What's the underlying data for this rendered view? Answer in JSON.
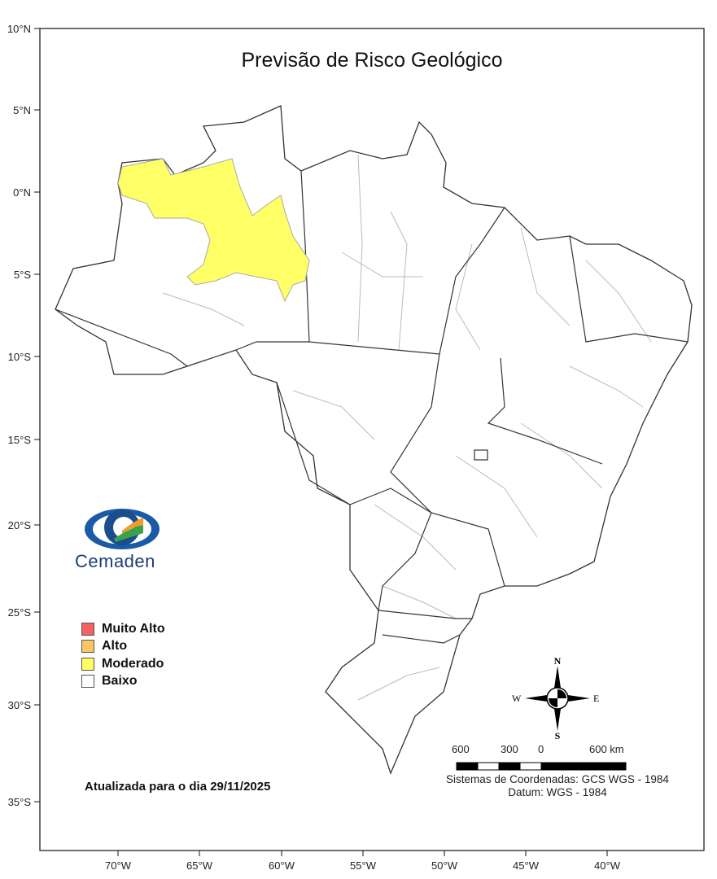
{
  "title": "Previsão de Risco Geológico",
  "axes": {
    "longitude_ticks": [
      "70°W",
      "65°W",
      "60°W",
      "55°W",
      "50°W",
      "45°W",
      "40°W"
    ],
    "latitude_ticks": [
      "10°N",
      "5°N",
      "0°N",
      "5°S",
      "10°S",
      "15°S",
      "20°S",
      "25°S",
      "30°S",
      "35°S"
    ]
  },
  "legend": {
    "items": [
      {
        "label": "Muito Alto",
        "color": "#f56161"
      },
      {
        "label": "Alto",
        "color": "#fcc563"
      },
      {
        "label": "Moderado",
        "color": "#ffff66"
      },
      {
        "label": "Baixo",
        "color": "#ffffff"
      }
    ]
  },
  "highlighted_region_level": "Moderado",
  "logo": {
    "text": "Cemaden"
  },
  "updated_text": "Atualizada para o dia 29/11/2025",
  "compass": {
    "n": "N",
    "s": "S",
    "e": "E",
    "w": "W"
  },
  "scale_bar": {
    "labels": [
      "600",
      "300",
      "0",
      "600 km"
    ]
  },
  "coordinate_system": "Sistemas de Coordenadas: GCS WGS - 1984",
  "datum": "Datum: WGS - 1984"
}
